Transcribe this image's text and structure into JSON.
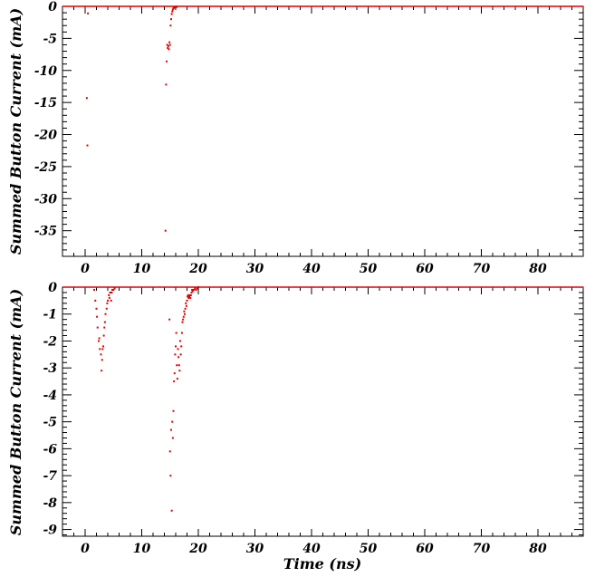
{
  "colors": {
    "points": "#e00000",
    "frame": "#000000",
    "background": "#ffffff"
  },
  "chart_data": [
    {
      "type": "scatter",
      "title": "",
      "xlabel": "",
      "ylabel": "Summed Button Current (mA)",
      "xlim": [
        -4,
        88
      ],
      "ylim": [
        -39,
        0
      ],
      "xticks": [
        0,
        10,
        20,
        30,
        40,
        50,
        60,
        70,
        80
      ],
      "yticks": [
        0,
        -5,
        -10,
        -15,
        -20,
        -25,
        -30,
        -35
      ],
      "grid": false,
      "baseline": {
        "value": 0,
        "from": -4,
        "to": 88
      },
      "series": [
        {
          "x": [
            0.3,
            0.4,
            0.5,
            14.2,
            14.3,
            14.4,
            14.5,
            14.6,
            14.7,
            14.8,
            14.9,
            15.0,
            15.1,
            15.2,
            15.3,
            15.4,
            15.5,
            15.6,
            15.7,
            15.8,
            15.9,
            16.0,
            16.1,
            16.2
          ],
          "y": [
            -14.3,
            -21.7,
            -1.1,
            -35.0,
            -12.2,
            -8.6,
            -6.0,
            -6.5,
            -6.2,
            -6.7,
            -5.6,
            -6.0,
            -3.0,
            -2.0,
            -1.2,
            -0.8,
            -0.5,
            -0.3,
            -0.2,
            -0.1,
            -0.2,
            -0.1,
            -0.05,
            -0.1
          ]
        }
      ]
    },
    {
      "type": "scatter",
      "title": "",
      "xlabel": "Time (ns)",
      "ylabel": "Summed Button Current (mA)",
      "xlim": [
        -4,
        88
      ],
      "ylim": [
        -9.25,
        0
      ],
      "xticks": [
        0,
        10,
        20,
        30,
        40,
        50,
        60,
        70,
        80
      ],
      "yticks": [
        0,
        -1,
        -2,
        -3,
        -4,
        -5,
        -6,
        -7,
        -8,
        -9
      ],
      "grid": false,
      "baseline": {
        "value": 0,
        "from": -4,
        "to": 88
      },
      "series": [
        {
          "x": [
            1.6,
            1.8,
            2.0,
            2.1,
            2.2,
            2.4,
            2.5,
            2.6,
            2.8,
            2.9,
            3.0,
            3.1,
            3.2,
            3.3,
            3.4,
            3.5,
            3.6,
            3.8,
            3.9,
            4.0,
            4.2,
            4.3,
            4.4,
            4.6,
            4.7,
            4.8,
            5.0,
            5.2,
            14.9,
            15.0,
            15.1,
            15.2,
            15.3,
            15.4,
            15.5,
            15.6,
            15.7,
            15.8,
            15.9,
            16.0,
            16.1,
            16.2,
            16.3,
            16.4,
            16.5,
            16.6,
            16.7,
            16.8,
            16.9,
            17.0,
            17.1,
            17.2,
            17.3,
            17.4,
            17.5,
            17.6,
            17.7,
            17.8,
            17.9,
            18.0,
            18.1,
            18.2,
            18.3,
            18.4,
            18.5,
            18.6,
            18.7,
            18.8,
            18.9,
            19.0,
            19.2,
            19.4,
            19.6,
            19.8,
            20.0
          ],
          "y": [
            -0.1,
            -0.5,
            -0.8,
            -1.1,
            -1.5,
            -2.0,
            -1.9,
            -2.3,
            -2.5,
            -3.1,
            -2.7,
            -2.3,
            -2.2,
            -1.8,
            -1.5,
            -1.3,
            -1.0,
            -0.8,
            -0.6,
            -0.5,
            -0.3,
            -0.4,
            -0.2,
            -0.5,
            -0.2,
            -0.1,
            -0.1,
            -0.05,
            -1.2,
            -6.1,
            -7.0,
            -5.3,
            -8.3,
            -5.0,
            -5.6,
            -4.6,
            -3.5,
            -3.2,
            -2.5,
            -2.2,
            -1.7,
            -2.9,
            -3.4,
            -2.3,
            -2.6,
            -2.9,
            -3.1,
            -2.0,
            -2.5,
            -2.2,
            -1.7,
            -1.3,
            -1.2,
            -1.1,
            -0.9,
            -1.0,
            -0.8,
            -0.6,
            -0.7,
            -0.5,
            -0.35,
            -0.3,
            -0.4,
            -0.35,
            -0.3,
            -0.4,
            -0.3,
            -0.2,
            -0.1,
            -0.15,
            -0.1,
            -0.05,
            -0.1,
            -0.05,
            0.0
          ]
        }
      ]
    }
  ]
}
